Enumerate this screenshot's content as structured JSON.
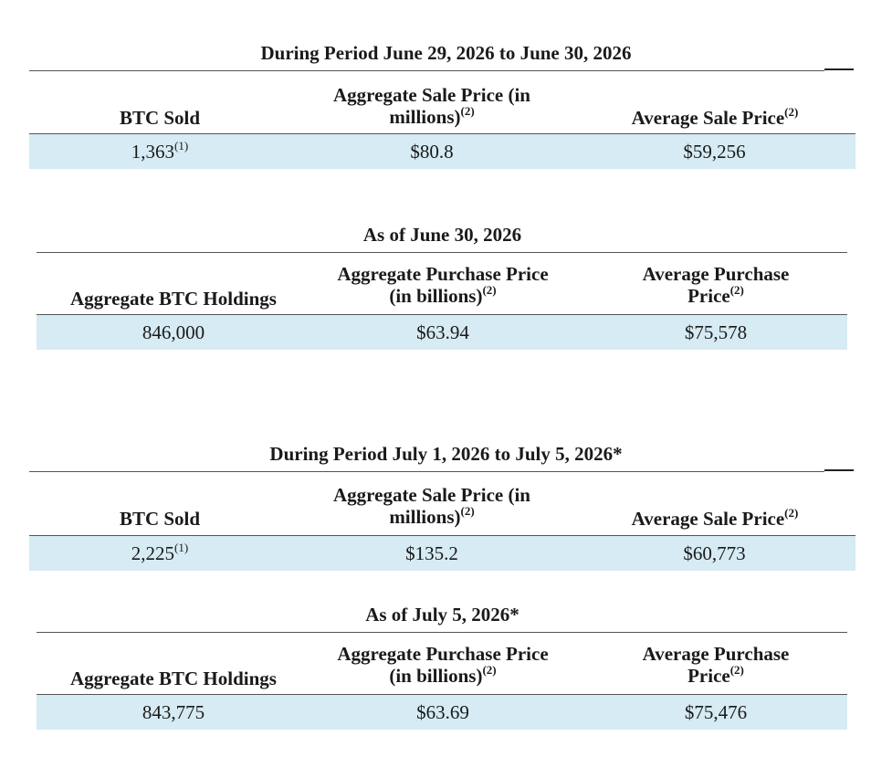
{
  "sections": [
    {
      "title": "During Period June 29, 2026 to June 30, 2026",
      "headers": [
        "BTC Sold",
        "Aggregate Sale Price (in",
        "millions)",
        "Average Sale Price"
      ],
      "sup": "(2)",
      "values": [
        "1,363",
        "$80.8",
        "$59,256"
      ],
      "value_sup": "(1)"
    },
    {
      "title": "As of June 30, 2026",
      "headers": [
        "Aggregate BTC Holdings",
        "Aggregate Purchase Price",
        "(in billions)",
        "Average Purchase",
        "Price"
      ],
      "sup": "(2)",
      "values": [
        "846,000",
        "$63.94",
        "$75,578"
      ]
    },
    {
      "title": "During Period July 1, 2026 to July 5, 2026*",
      "headers": [
        "BTC Sold",
        "Aggregate Sale Price (in",
        "millions)",
        "Average Sale Price"
      ],
      "sup": "(2)",
      "values": [
        "2,225",
        "$135.2",
        "$60,773"
      ],
      "value_sup": "(1)"
    },
    {
      "title": "As of July 5, 2026*",
      "headers": [
        "Aggregate BTC Holdings",
        "Aggregate Purchase Price",
        "(in billions)",
        "Average Purchase",
        "Price"
      ],
      "sup": "(2)",
      "values": [
        "843,775",
        "$63.69",
        "$75,476"
      ]
    }
  ]
}
